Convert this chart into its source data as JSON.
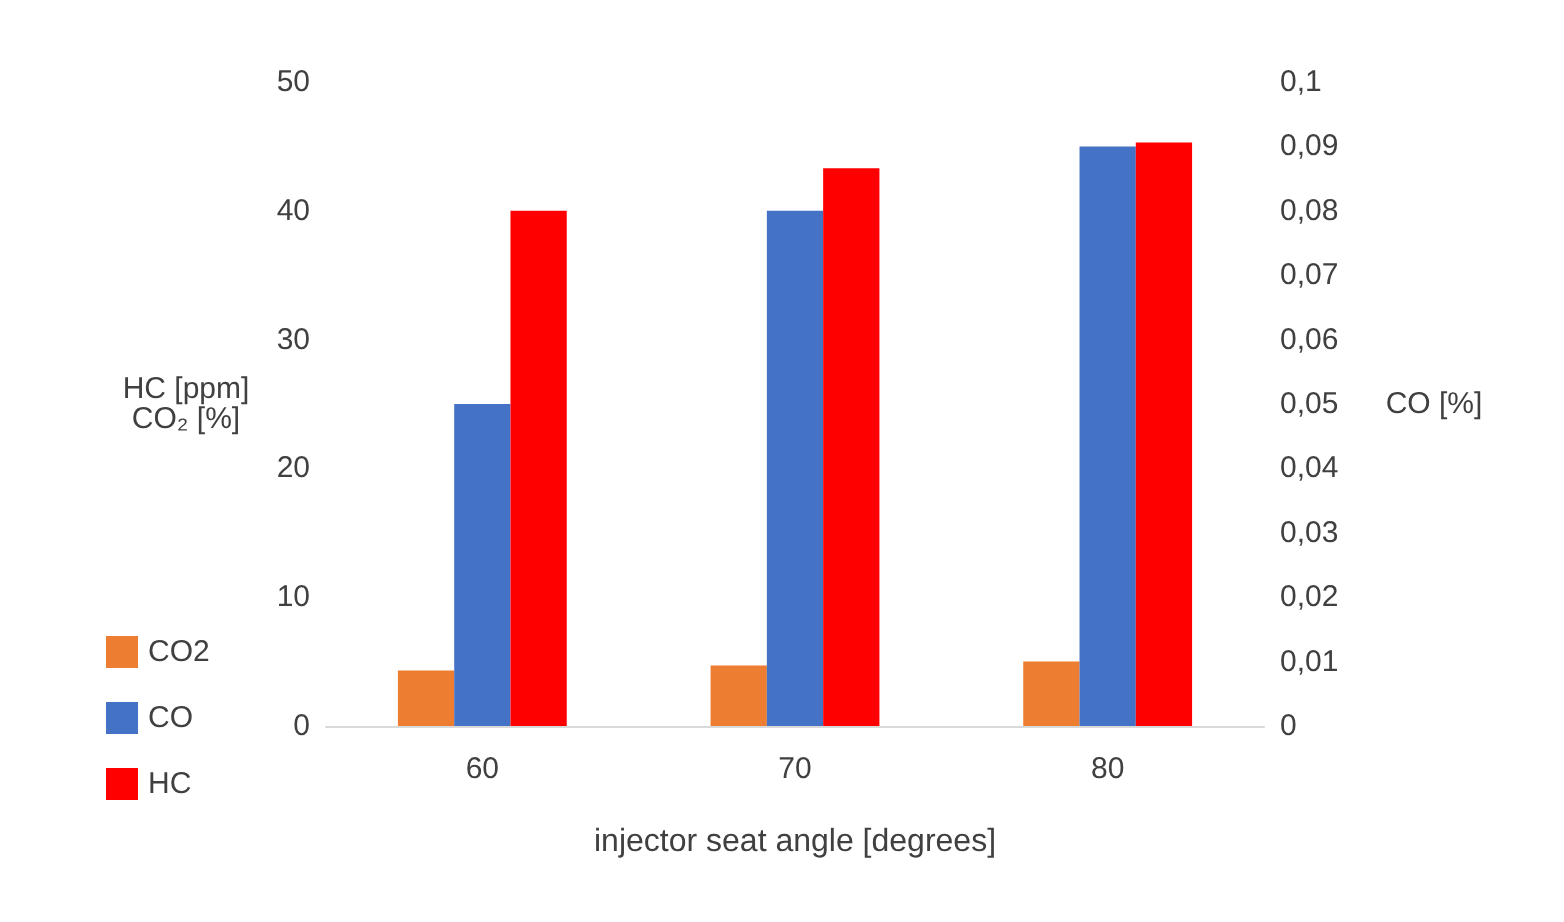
{
  "chart_data": {
    "type": "bar",
    "xlabel": "injector seat angle [degrees]",
    "ylabel": "HC [ppm]\nCO₂ [%]",
    "y2label": "CO [%]",
    "categories": [
      "60",
      "70",
      "80"
    ],
    "series": [
      {
        "name": "CO2",
        "color": "#ed7d31",
        "values": [
          4.3,
          4.7,
          5.0
        ]
      },
      {
        "name": "CO",
        "color": "#4472c4",
        "values": [
          0.05,
          0.08,
          0.09
        ],
        "axis": "y2"
      },
      {
        "name": "HC",
        "color": "#ff0000",
        "values": [
          40,
          43.3,
          45.3
        ]
      }
    ],
    "ylim": [
      0,
      50
    ],
    "yticks": [
      0,
      10,
      20,
      30,
      40,
      50
    ],
    "y2lim": [
      0,
      0.1
    ],
    "y2ticks": [
      {
        "value": 0,
        "label": "0"
      },
      {
        "value": 0.01,
        "label": "0,01"
      },
      {
        "value": 0.02,
        "label": "0,02"
      },
      {
        "value": 0.03,
        "label": "0,03"
      },
      {
        "value": 0.04,
        "label": "0,04"
      },
      {
        "value": 0.05,
        "label": "0,05"
      },
      {
        "value": 0.06,
        "label": "0,06"
      },
      {
        "value": 0.07,
        "label": "0,07"
      },
      {
        "value": 0.08,
        "label": "0,08"
      },
      {
        "value": 0.09,
        "label": "0,09"
      },
      {
        "value": 0.1,
        "label": "0,1"
      }
    ],
    "grid": false,
    "legend": "left"
  }
}
